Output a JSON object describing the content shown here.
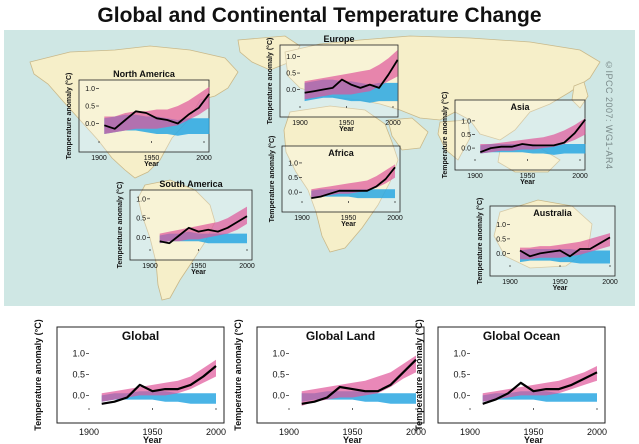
{
  "title": "Global and Continental Temperature Change",
  "credit": "©IPCC 2007: WG1-AR4",
  "colors": {
    "ocean": "#cfe7e4",
    "land": "#f6efc9",
    "land_stroke": "#c9b98a",
    "observed": "#000000",
    "natural_band": "#2aa7e2",
    "all_forcing_band": "#e0559a",
    "overlap": "#7a63b5"
  },
  "chart_data": [
    {
      "id": "north-america",
      "type": "area",
      "title": "North America",
      "ylabel": "Temperature anomaly (°C)",
      "xlabel": "Year",
      "xlim": [
        1900,
        2000
      ],
      "ylim": [
        -0.5,
        1.1
      ],
      "xticks": [
        "1900",
        "1950",
        "2000"
      ],
      "yticks": [
        "0.0",
        "0.5",
        "1.0"
      ],
      "years": [
        1905,
        1915,
        1925,
        1935,
        1945,
        1955,
        1965,
        1975,
        1985,
        1995,
        2005
      ],
      "observed": [
        -0.05,
        -0.15,
        0.1,
        0.35,
        0.3,
        0.15,
        0.1,
        0.0,
        0.25,
        0.45,
        0.85
      ],
      "all_forcing_low": [
        -0.3,
        -0.25,
        -0.2,
        -0.15,
        -0.15,
        -0.15,
        -0.1,
        -0.05,
        0.1,
        0.25,
        0.45
      ],
      "all_forcing_high": [
        0.2,
        0.2,
        0.3,
        0.35,
        0.35,
        0.4,
        0.4,
        0.5,
        0.65,
        0.85,
        1.05
      ],
      "natural_low": [
        -0.3,
        -0.25,
        -0.2,
        -0.2,
        -0.25,
        -0.3,
        -0.3,
        -0.35,
        -0.3,
        -0.3,
        -0.3
      ],
      "natural_high": [
        0.15,
        0.2,
        0.25,
        0.25,
        0.2,
        0.2,
        0.15,
        0.1,
        0.15,
        0.15,
        0.15
      ]
    },
    {
      "id": "europe",
      "type": "area",
      "title": "Europe",
      "ylabel": "Temperature anomaly (°C)",
      "xlabel": "Year",
      "xlim": [
        1900,
        2000
      ],
      "ylim": [
        -0.5,
        1.2
      ],
      "xticks": [
        "1900",
        "1950",
        "2000"
      ],
      "yticks": [
        "0.0",
        "0.5",
        "1.0"
      ],
      "years": [
        1905,
        1915,
        1925,
        1935,
        1945,
        1955,
        1965,
        1975,
        1985,
        1995,
        2005
      ],
      "observed": [
        -0.1,
        -0.05,
        0.0,
        0.05,
        0.3,
        0.15,
        0.05,
        0.15,
        0.05,
        0.45,
        0.9
      ],
      "all_forcing_low": [
        -0.3,
        -0.25,
        -0.2,
        -0.15,
        -0.15,
        -0.15,
        -0.1,
        -0.05,
        0.1,
        0.25,
        0.4
      ],
      "all_forcing_high": [
        0.25,
        0.3,
        0.35,
        0.4,
        0.45,
        0.5,
        0.55,
        0.6,
        0.75,
        0.95,
        1.2
      ],
      "natural_low": [
        -0.35,
        -0.3,
        -0.25,
        -0.25,
        -0.3,
        -0.35,
        -0.35,
        -0.4,
        -0.35,
        -0.35,
        -0.35
      ],
      "natural_high": [
        0.2,
        0.25,
        0.3,
        0.3,
        0.25,
        0.25,
        0.2,
        0.15,
        0.2,
        0.2,
        0.2
      ]
    },
    {
      "id": "asia",
      "type": "area",
      "title": "Asia",
      "ylabel": "Temperature anomaly (°C)",
      "xlabel": "Year",
      "xlim": [
        1900,
        2000
      ],
      "ylim": [
        -0.4,
        1.25
      ],
      "xticks": [
        "1900",
        "1950",
        "2000"
      ],
      "yticks": [
        "0.0",
        "0.5",
        "1.0"
      ],
      "years": [
        1905,
        1915,
        1925,
        1935,
        1945,
        1955,
        1965,
        1975,
        1985,
        1995,
        2005
      ],
      "observed": [
        -0.15,
        0.0,
        0.05,
        0.05,
        0.15,
        0.1,
        0.1,
        0.1,
        0.2,
        0.55,
        1.05
      ],
      "all_forcing_low": [
        -0.2,
        -0.15,
        -0.1,
        -0.1,
        -0.05,
        -0.05,
        0.0,
        0.05,
        0.15,
        0.3,
        0.5
      ],
      "all_forcing_high": [
        0.15,
        0.15,
        0.2,
        0.25,
        0.3,
        0.35,
        0.4,
        0.5,
        0.65,
        0.85,
        1.1
      ],
      "natural_low": [
        -0.2,
        -0.15,
        -0.15,
        -0.15,
        -0.15,
        -0.2,
        -0.2,
        -0.25,
        -0.2,
        -0.2,
        -0.2
      ],
      "natural_high": [
        0.1,
        0.15,
        0.15,
        0.15,
        0.15,
        0.15,
        0.1,
        0.1,
        0.15,
        0.15,
        0.15
      ]
    },
    {
      "id": "africa",
      "type": "area",
      "title": "Africa",
      "ylabel": "Temperature anomaly (°C)",
      "xlabel": "Year",
      "xlim": [
        1900,
        2000
      ],
      "ylim": [
        -0.3,
        1.1
      ],
      "xticks": [
        "1900",
        "1950",
        "2000"
      ],
      "yticks": [
        "0.0",
        "0.5",
        "1.0"
      ],
      "years": [
        1910,
        1920,
        1930,
        1940,
        1950,
        1960,
        1970,
        1980,
        1990,
        2000
      ],
      "observed": [
        -0.2,
        -0.15,
        -0.05,
        0.05,
        0.05,
        0.05,
        0.05,
        0.2,
        0.45,
        0.85
      ],
      "all_forcing_low": [
        -0.2,
        -0.15,
        -0.1,
        -0.05,
        -0.05,
        0.0,
        0.05,
        0.15,
        0.3,
        0.5
      ],
      "all_forcing_high": [
        0.1,
        0.15,
        0.2,
        0.25,
        0.3,
        0.35,
        0.4,
        0.55,
        0.75,
        0.95
      ],
      "natural_low": [
        -0.2,
        -0.15,
        -0.15,
        -0.15,
        -0.15,
        -0.2,
        -0.2,
        -0.2,
        -0.2,
        -0.2
      ],
      "natural_high": [
        0.05,
        0.1,
        0.1,
        0.1,
        0.1,
        0.1,
        0.1,
        0.1,
        0.1,
        0.1
      ]
    },
    {
      "id": "south-america",
      "type": "area",
      "title": "South America",
      "ylabel": "Temperature anomaly (°C)",
      "xlabel": "Year",
      "xlim": [
        1900,
        2000
      ],
      "ylim": [
        -0.3,
        1.1
      ],
      "xticks": [
        "1900",
        "1950",
        "2000"
      ],
      "yticks": [
        "0.0",
        "0.5",
        "1.0"
      ],
      "years": [
        1910,
        1920,
        1930,
        1940,
        1950,
        1960,
        1970,
        1980,
        1990,
        2000
      ],
      "observed": [
        -0.1,
        -0.15,
        0.05,
        0.25,
        0.15,
        0.2,
        0.15,
        0.25,
        0.4,
        0.55
      ],
      "all_forcing_low": [
        -0.15,
        -0.1,
        -0.1,
        -0.05,
        -0.05,
        0.0,
        0.05,
        0.1,
        0.2,
        0.35
      ],
      "all_forcing_high": [
        0.1,
        0.15,
        0.2,
        0.25,
        0.3,
        0.35,
        0.4,
        0.5,
        0.65,
        0.8
      ],
      "natural_low": [
        -0.15,
        -0.1,
        -0.1,
        -0.1,
        -0.1,
        -0.15,
        -0.15,
        -0.15,
        -0.15,
        -0.15
      ],
      "natural_high": [
        0.05,
        0.1,
        0.1,
        0.15,
        0.1,
        0.1,
        0.1,
        0.1,
        0.1,
        0.1
      ]
    },
    {
      "id": "australia",
      "type": "area",
      "title": "Australia",
      "ylabel": "Temperature anomaly (°C)",
      "xlabel": "Year",
      "xlim": [
        1900,
        2000
      ],
      "ylim": [
        -0.4,
        1.15
      ],
      "xticks": [
        "1900",
        "1950",
        "2000"
      ],
      "yticks": [
        "0.0",
        "0.5",
        "1.0"
      ],
      "years": [
        1910,
        1920,
        1930,
        1940,
        1950,
        1960,
        1970,
        1980,
        1990,
        2000
      ],
      "observed": [
        0.1,
        -0.1,
        0.0,
        0.05,
        0.1,
        -0.1,
        0.15,
        0.15,
        0.35,
        0.55
      ],
      "all_forcing_low": [
        -0.2,
        -0.2,
        -0.15,
        -0.15,
        -0.15,
        -0.1,
        -0.05,
        0.05,
        0.15,
        0.25
      ],
      "all_forcing_high": [
        0.2,
        0.2,
        0.25,
        0.25,
        0.3,
        0.35,
        0.4,
        0.5,
        0.6,
        0.7
      ],
      "natural_low": [
        -0.3,
        -0.25,
        -0.25,
        -0.25,
        -0.3,
        -0.3,
        -0.35,
        -0.35,
        -0.35,
        -0.35
      ],
      "natural_high": [
        0.1,
        0.15,
        0.15,
        0.15,
        0.15,
        0.15,
        0.1,
        0.1,
        0.1,
        0.1
      ]
    },
    {
      "id": "global",
      "type": "area",
      "title": "Global",
      "ylabel": "Temperature anomaly (°C)",
      "xlabel": "Year",
      "xlim": [
        1900,
        2000
      ],
      "ylim": [
        -0.3,
        1.2
      ],
      "xticks": [
        "1900",
        "1950",
        "2000"
      ],
      "yticks": [
        "0.0",
        "0.5",
        "1.0"
      ],
      "years": [
        1910,
        1920,
        1930,
        1940,
        1950,
        1960,
        1970,
        1980,
        1990,
        2000
      ],
      "observed": [
        -0.2,
        -0.15,
        -0.05,
        0.25,
        0.1,
        0.15,
        0.15,
        0.25,
        0.45,
        0.7
      ],
      "all_forcing_low": [
        -0.15,
        -0.1,
        -0.05,
        0.0,
        0.0,
        0.0,
        0.05,
        0.15,
        0.3,
        0.45
      ],
      "all_forcing_high": [
        0.05,
        0.1,
        0.15,
        0.2,
        0.25,
        0.3,
        0.35,
        0.45,
        0.65,
        0.85
      ],
      "natural_low": [
        -0.15,
        -0.1,
        -0.1,
        -0.1,
        -0.1,
        -0.15,
        -0.15,
        -0.2,
        -0.2,
        -0.2
      ],
      "natural_high": [
        0.0,
        0.05,
        0.05,
        0.1,
        0.1,
        0.1,
        0.05,
        0.05,
        0.05,
        0.05
      ]
    },
    {
      "id": "global-land",
      "type": "area",
      "title": "Global Land",
      "ylabel": "Temperature anomaly (°C)",
      "xlabel": "Year",
      "xlim": [
        1900,
        2000
      ],
      "ylim": [
        -0.3,
        1.2
      ],
      "xticks": [
        "1900",
        "1950",
        "2000"
      ],
      "yticks": [
        "0.0",
        "0.5",
        "1.0"
      ],
      "years": [
        1910,
        1920,
        1930,
        1940,
        1950,
        1960,
        1970,
        1980,
        1990,
        2000
      ],
      "observed": [
        -0.2,
        -0.15,
        -0.05,
        0.2,
        0.15,
        0.1,
        0.1,
        0.25,
        0.55,
        0.85
      ],
      "all_forcing_low": [
        -0.25,
        -0.15,
        -0.1,
        -0.05,
        -0.05,
        0.0,
        0.05,
        0.2,
        0.4,
        0.55
      ],
      "all_forcing_high": [
        0.1,
        0.15,
        0.2,
        0.25,
        0.3,
        0.35,
        0.45,
        0.55,
        0.75,
        0.95
      ],
      "natural_low": [
        -0.15,
        -0.1,
        -0.1,
        -0.1,
        -0.1,
        -0.15,
        -0.15,
        -0.2,
        -0.2,
        -0.2
      ],
      "natural_high": [
        0.05,
        0.05,
        0.1,
        0.1,
        0.1,
        0.1,
        0.05,
        0.05,
        0.05,
        0.05
      ]
    },
    {
      "id": "global-ocean",
      "type": "area",
      "title": "Global Ocean",
      "ylabel": "Temperature anomaly (°C)",
      "xlabel": "Year",
      "xlim": [
        1900,
        2000
      ],
      "ylim": [
        -0.3,
        1.2
      ],
      "xticks": [
        "1900",
        "1950",
        "2000"
      ],
      "yticks": [
        "0.0",
        "0.5",
        "1.0"
      ],
      "years": [
        1910,
        1920,
        1930,
        1940,
        1950,
        1960,
        1970,
        1980,
        1990,
        2000
      ],
      "observed": [
        -0.2,
        -0.1,
        0.05,
        0.3,
        0.1,
        0.15,
        0.15,
        0.25,
        0.4,
        0.55
      ],
      "all_forcing_low": [
        -0.15,
        -0.1,
        -0.05,
        0.0,
        0.0,
        0.0,
        0.05,
        0.15,
        0.25,
        0.35
      ],
      "all_forcing_high": [
        0.05,
        0.1,
        0.15,
        0.2,
        0.25,
        0.3,
        0.35,
        0.45,
        0.55,
        0.7
      ],
      "natural_low": [
        -0.15,
        -0.1,
        -0.1,
        -0.1,
        -0.1,
        -0.15,
        -0.15,
        -0.15,
        -0.15,
        -0.15
      ],
      "natural_high": [
        0.0,
        0.05,
        0.05,
        0.1,
        0.1,
        0.1,
        0.05,
        0.05,
        0.05,
        0.05
      ]
    }
  ]
}
